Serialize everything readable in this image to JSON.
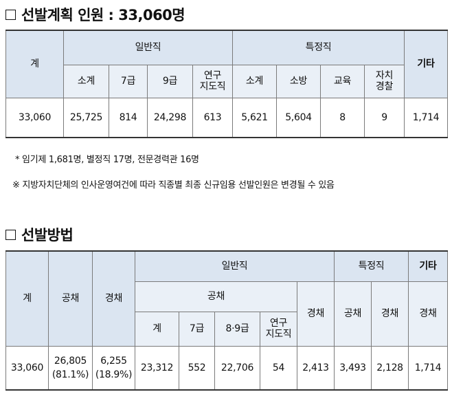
{
  "section1": {
    "title": "선발계획 인원 : 33,060명",
    "headers": {
      "total": "계",
      "general": "일반직",
      "special": "특정직",
      "other": "기타",
      "sub_general": [
        "소계",
        "7급",
        "9급",
        "연구",
        "지도직"
      ],
      "sub_special": [
        "소계",
        "소방",
        "교육",
        "자치",
        "경찰"
      ]
    },
    "row": [
      "33,060",
      "25,725",
      "814",
      "24,298",
      "613",
      "5,621",
      "5,604",
      "8",
      "9",
      "1,714"
    ]
  },
  "notes": [
    "* 임기제 1,681명, 별정직 17명, 전문경력관 16명",
    "※ 지방자치단체의 인사운영여건에 따라 직종별 최종 신규임용 선발인원은 변경될 수 있음"
  ],
  "section2": {
    "title": "선발방법",
    "headers": {
      "total": "계",
      "open": "공채",
      "career": "경채",
      "general": "일반직",
      "special": "특정직",
      "other": "기타",
      "general_open": "공채",
      "general_career": "경채",
      "sub_open": [
        "계",
        "7급",
        "8·9급",
        "연구",
        "지도직"
      ],
      "special_open": "공채",
      "special_career": "경채",
      "other_career": "경채"
    },
    "row": {
      "total": "33,060",
      "open": "26,805",
      "open_pct": "(81.1%)",
      "career": "6,255",
      "career_pct": "(18.9%)",
      "values": [
        "23,312",
        "552",
        "22,706",
        "54",
        "2,413",
        "3,493",
        "2,128",
        "1,714"
      ]
    }
  }
}
